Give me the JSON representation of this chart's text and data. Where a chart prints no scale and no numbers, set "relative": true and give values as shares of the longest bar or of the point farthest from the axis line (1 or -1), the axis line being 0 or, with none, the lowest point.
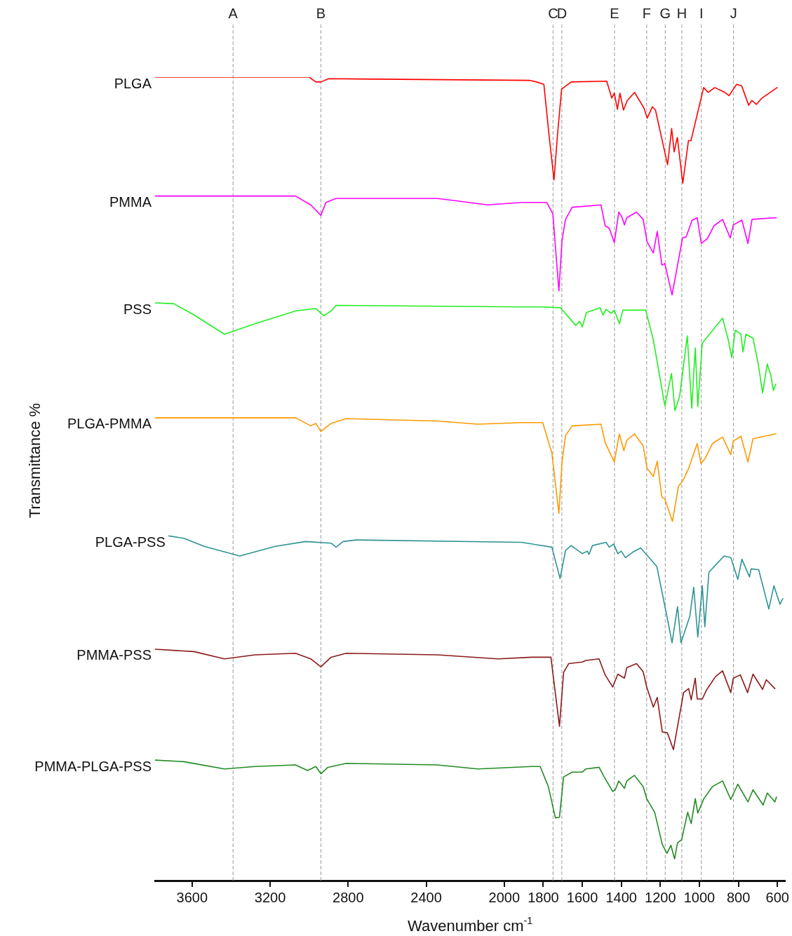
{
  "chart_data": {
    "type": "line",
    "relative": true,
    "grid": false,
    "xlabel": "Wavenumber cm$^{-1}$",
    "annotations": [
      "Transmittance %"
    ],
    "xlim": [
      3790,
      560
    ],
    "xticks": [
      3600,
      3200,
      2800,
      2400,
      2000,
      1800,
      1600,
      1400,
      1200,
      1000,
      800,
      600
    ],
    "ref_lines": [
      {
        "axis": "x",
        "value": 3390,
        "label": "A",
        "color": "#999999",
        "line_style": "dashed"
      },
      {
        "axis": "x",
        "value": 2940,
        "label": "B",
        "color": "#999999",
        "line_style": "dashed"
      },
      {
        "axis": "x",
        "value": 1750,
        "label": "C",
        "color": "#999999",
        "line_style": "dashed"
      },
      {
        "axis": "x",
        "value": 1705,
        "label": "D",
        "color": "#999999",
        "line_style": "dashed"
      },
      {
        "axis": "x",
        "value": 1435,
        "label": "E",
        "color": "#999999",
        "line_style": "dashed"
      },
      {
        "axis": "x",
        "value": 1270,
        "label": "F",
        "color": "#999999",
        "line_style": "dashed"
      },
      {
        "axis": "x",
        "value": 1175,
        "label": "G",
        "color": "#999999",
        "line_style": "dashed"
      },
      {
        "axis": "x",
        "value": 1090,
        "label": "H",
        "color": "#999999",
        "line_style": "dashed"
      },
      {
        "axis": "x",
        "value": 990,
        "label": "I",
        "color": "#999999",
        "line_style": "dashed"
      },
      {
        "axis": "x",
        "value": 825,
        "label": "J",
        "color": "#999999",
        "line_style": "dashed"
      }
    ],
    "series": [
      {
        "name": "PLGA",
        "color": "#ff0000",
        "x": [
          3790,
          3000,
          2966,
          2940,
          2900,
          1873,
          1834,
          1797,
          1771,
          1745,
          1727,
          1706,
          1657,
          1475,
          1449,
          1436,
          1420,
          1407,
          1389,
          1369,
          1332,
          1285,
          1267,
          1241,
          1225,
          1163,
          1142,
          1129,
          1113,
          1085,
          1056,
          1043,
          978,
          955,
          921,
          869,
          848,
          809,
          783,
          747,
          731,
          708,
          679,
          601
        ],
        "values": [
          1.0,
          1.0,
          0.994,
          0.994,
          0.998,
          0.996,
          0.994,
          0.991,
          0.929,
          0.872,
          0.929,
          0.985,
          0.994,
          0.995,
          0.974,
          0.98,
          0.96,
          0.98,
          0.959,
          0.971,
          0.981,
          0.962,
          0.949,
          0.963,
          0.959,
          0.891,
          0.936,
          0.907,
          0.925,
          0.868,
          0.921,
          0.921,
          0.987,
          0.981,
          0.987,
          0.981,
          0.977,
          0.991,
          0.989,
          0.965,
          0.971,
          0.966,
          0.974,
          0.987
        ]
      },
      {
        "name": "PMMA",
        "color": "#ff00ff",
        "x": [
          3790,
          3070,
          2992,
          2940,
          2914,
          2862,
          2343,
          2083,
          1912,
          1782,
          1751,
          1720,
          1704,
          1686,
          1652,
          1504,
          1483,
          1462,
          1436,
          1413,
          1397,
          1384,
          1372,
          1322,
          1288,
          1268,
          1236,
          1216,
          1192,
          1177,
          1140,
          1086,
          1068,
          1037,
          1011,
          990,
          959,
          925,
          881,
          842,
          826,
          782,
          751,
          730,
          605
        ],
        "values": [
          0.852,
          0.852,
          0.841,
          0.828,
          0.844,
          0.849,
          0.849,
          0.841,
          0.844,
          0.844,
          0.83,
          0.734,
          0.797,
          0.823,
          0.838,
          0.841,
          0.815,
          0.812,
          0.794,
          0.832,
          0.826,
          0.816,
          0.825,
          0.832,
          0.823,
          0.795,
          0.781,
          0.808,
          0.766,
          0.768,
          0.729,
          0.8,
          0.801,
          0.822,
          0.825,
          0.793,
          0.799,
          0.815,
          0.823,
          0.8,
          0.816,
          0.822,
          0.793,
          0.823,
          0.825
        ]
      },
      {
        "name": "PSS",
        "color": "#22ee22",
        "x": [
          3790,
          3694,
          3590,
          3434,
          3278,
          3070,
          2966,
          2925,
          2888,
          2862,
          1912,
          1808,
          1712,
          1634,
          1613,
          1600,
          1579,
          1509,
          1494,
          1478,
          1452,
          1436,
          1410,
          1392,
          1275,
          1236,
          1177,
          1143,
          1125,
          1101,
          1062,
          1039,
          1021,
          1008,
          985,
          881,
          852,
          834,
          816,
          787,
          777,
          761,
          725,
          699,
          676,
          652,
          634,
          621,
          608
        ],
        "values": [
          0.719,
          0.718,
          0.704,
          0.68,
          0.693,
          0.709,
          0.712,
          0.703,
          0.709,
          0.716,
          0.714,
          0.714,
          0.713,
          0.691,
          0.696,
          0.689,
          0.707,
          0.713,
          0.704,
          0.711,
          0.706,
          0.71,
          0.693,
          0.71,
          0.71,
          0.673,
          0.591,
          0.631,
          0.585,
          0.603,
          0.678,
          0.588,
          0.663,
          0.59,
          0.669,
          0.7,
          0.673,
          0.651,
          0.685,
          0.68,
          0.658,
          0.68,
          0.675,
          0.644,
          0.607,
          0.643,
          0.629,
          0.61,
          0.618
        ]
      },
      {
        "name": "PLGA-PMMA",
        "color": "#ff9900",
        "x": [
          3790,
          3070,
          2992,
          2966,
          2940,
          2888,
          2810,
          2343,
          2135,
          1912,
          1803,
          1756,
          1720,
          1704,
          1686,
          1652,
          1504,
          1483,
          1436,
          1410,
          1387,
          1372,
          1333,
          1288,
          1268,
          1236,
          1216,
          1192,
          1177,
          1138,
          1107,
          1086,
          1055,
          1011,
          992,
          969,
          933,
          881,
          839,
          826,
          787,
          751,
          725,
          608
        ],
        "values": [
          0.576,
          0.576,
          0.566,
          0.569,
          0.559,
          0.569,
          0.575,
          0.572,
          0.568,
          0.57,
          0.57,
          0.532,
          0.457,
          0.521,
          0.554,
          0.566,
          0.568,
          0.545,
          0.521,
          0.556,
          0.535,
          0.548,
          0.556,
          0.541,
          0.513,
          0.503,
          0.522,
          0.477,
          0.475,
          0.447,
          0.491,
          0.497,
          0.513,
          0.544,
          0.519,
          0.526,
          0.544,
          0.552,
          0.53,
          0.547,
          0.553,
          0.521,
          0.55,
          0.556
        ]
      },
      {
        "name": "PLGA-PSS",
        "color": "#2e9393",
        "x": [
          3719,
          3642,
          3538,
          3356,
          3174,
          3018,
          2888,
          2862,
          2826,
          2758,
          1912,
          1756,
          1714,
          1686,
          1657,
          1600,
          1574,
          1566,
          1548,
          1478,
          1462,
          1439,
          1418,
          1400,
          1379,
          1340,
          1301,
          1218,
          1159,
          1140,
          1112,
          1094,
          1049,
          1029,
          1008,
          985,
          972,
          951,
          873,
          839,
          803,
          782,
          743,
          735,
          696,
          644,
          618,
          587,
          572
        ],
        "values": [
          0.429,
          0.426,
          0.416,
          0.404,
          0.416,
          0.422,
          0.42,
          0.415,
          0.422,
          0.424,
          0.421,
          0.415,
          0.376,
          0.411,
          0.417,
          0.407,
          0.41,
          0.406,
          0.417,
          0.421,
          0.415,
          0.419,
          0.407,
          0.41,
          0.402,
          0.409,
          0.414,
          0.391,
          0.32,
          0.296,
          0.341,
          0.296,
          0.329,
          0.365,
          0.303,
          0.367,
          0.316,
          0.384,
          0.404,
          0.402,
          0.375,
          0.4,
          0.378,
          0.388,
          0.387,
          0.338,
          0.367,
          0.344,
          0.351
        ]
      },
      {
        "name": "PMMA-PSS",
        "color": "#8b1a1a",
        "x": [
          3790,
          3590,
          3434,
          3278,
          3070,
          2992,
          2940,
          2888,
          2810,
          2343,
          2031,
          1860,
          1761,
          1717,
          1696,
          1670,
          1600,
          1582,
          1514,
          1483,
          1444,
          1418,
          1384,
          1372,
          1322,
          1288,
          1270,
          1236,
          1216,
          1190,
          1164,
          1133,
          1081,
          1055,
          1042,
          1021,
          1011,
          985,
          964,
          917,
          881,
          839,
          826,
          790,
          753,
          725,
          676,
          657,
          613
        ],
        "values": [
          0.288,
          0.285,
          0.276,
          0.281,
          0.283,
          0.276,
          0.266,
          0.278,
          0.283,
          0.281,
          0.276,
          0.278,
          0.278,
          0.192,
          0.259,
          0.27,
          0.272,
          0.274,
          0.276,
          0.256,
          0.241,
          0.257,
          0.252,
          0.265,
          0.27,
          0.26,
          0.241,
          0.216,
          0.228,
          0.185,
          0.184,
          0.163,
          0.234,
          0.239,
          0.225,
          0.252,
          0.226,
          0.226,
          0.237,
          0.254,
          0.261,
          0.234,
          0.252,
          0.256,
          0.234,
          0.257,
          0.238,
          0.25,
          0.239
        ]
      },
      {
        "name": "PMMA-PLGA-PSS",
        "color": "#228b22",
        "x": [
          3790,
          3642,
          3434,
          3278,
          3070,
          3008,
          2966,
          2940,
          2904,
          2810,
          2343,
          2135,
          1860,
          1816,
          1774,
          1738,
          1717,
          1696,
          1652,
          1600,
          1582,
          1514,
          1488,
          1444,
          1431,
          1413,
          1384,
          1372,
          1333,
          1288,
          1270,
          1229,
          1190,
          1166,
          1146,
          1127,
          1112,
          1091,
          1060,
          1042,
          1021,
          1008,
          977,
          933,
          881,
          839,
          803,
          751,
          725,
          673,
          652,
          613,
          605
        ],
        "values": [
          0.15,
          0.148,
          0.139,
          0.142,
          0.144,
          0.137,
          0.142,
          0.133,
          0.141,
          0.146,
          0.144,
          0.139,
          0.142,
          0.142,
          0.117,
          0.078,
          0.079,
          0.129,
          0.135,
          0.135,
          0.139,
          0.141,
          0.129,
          0.111,
          0.113,
          0.124,
          0.115,
          0.124,
          0.131,
          0.117,
          0.102,
          0.085,
          0.045,
          0.034,
          0.044,
          0.027,
          0.047,
          0.051,
          0.085,
          0.071,
          0.102,
          0.084,
          0.102,
          0.117,
          0.124,
          0.101,
          0.12,
          0.098,
          0.113,
          0.094,
          0.109,
          0.098,
          0.104
        ]
      }
    ]
  }
}
